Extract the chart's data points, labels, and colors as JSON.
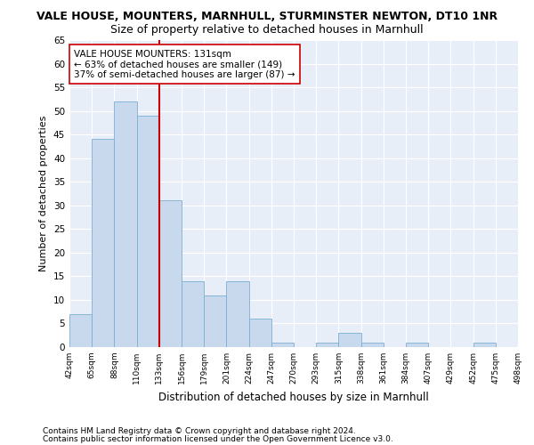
{
  "title": "VALE HOUSE, MOUNTERS, MARNHULL, STURMINSTER NEWTON, DT10 1NR",
  "subtitle": "Size of property relative to detached houses in Marnhull",
  "xlabel": "Distribution of detached houses by size in Marnhull",
  "ylabel": "Number of detached properties",
  "bar_values": [
    7,
    44,
    52,
    49,
    31,
    14,
    11,
    14,
    6,
    1,
    0,
    1,
    3,
    1,
    0,
    1,
    0,
    0,
    1,
    0
  ],
  "bin_labels": [
    "42sqm",
    "65sqm",
    "88sqm",
    "110sqm",
    "133sqm",
    "156sqm",
    "179sqm",
    "201sqm",
    "224sqm",
    "247sqm",
    "270sqm",
    "293sqm",
    "315sqm",
    "338sqm",
    "361sqm",
    "384sqm",
    "407sqm",
    "429sqm",
    "452sqm",
    "475sqm",
    "498sqm"
  ],
  "bar_color": "#c8d8ed",
  "bar_edge_color": "#7aafd4",
  "reference_line_color": "#cc0000",
  "annotation_text": "VALE HOUSE MOUNTERS: 131sqm\n← 63% of detached houses are smaller (149)\n37% of semi-detached houses are larger (87) →",
  "annotation_box_color": "#ffffff",
  "annotation_box_edge_color": "#cc0000",
  "ylim": [
    0,
    65
  ],
  "yticks": [
    0,
    5,
    10,
    15,
    20,
    25,
    30,
    35,
    40,
    45,
    50,
    55,
    60,
    65
  ],
  "footer_line1": "Contains HM Land Registry data © Crown copyright and database right 2024.",
  "footer_line2": "Contains public sector information licensed under the Open Government Licence v3.0.",
  "bg_color": "#ffffff",
  "plot_bg_color": "#e8eef8",
  "grid_color": "#ffffff",
  "title_fontsize": 9,
  "subtitle_fontsize": 9,
  "annotation_fontsize": 7.5,
  "footer_fontsize": 6.5,
  "ylabel_fontsize": 8,
  "xlabel_fontsize": 8.5
}
